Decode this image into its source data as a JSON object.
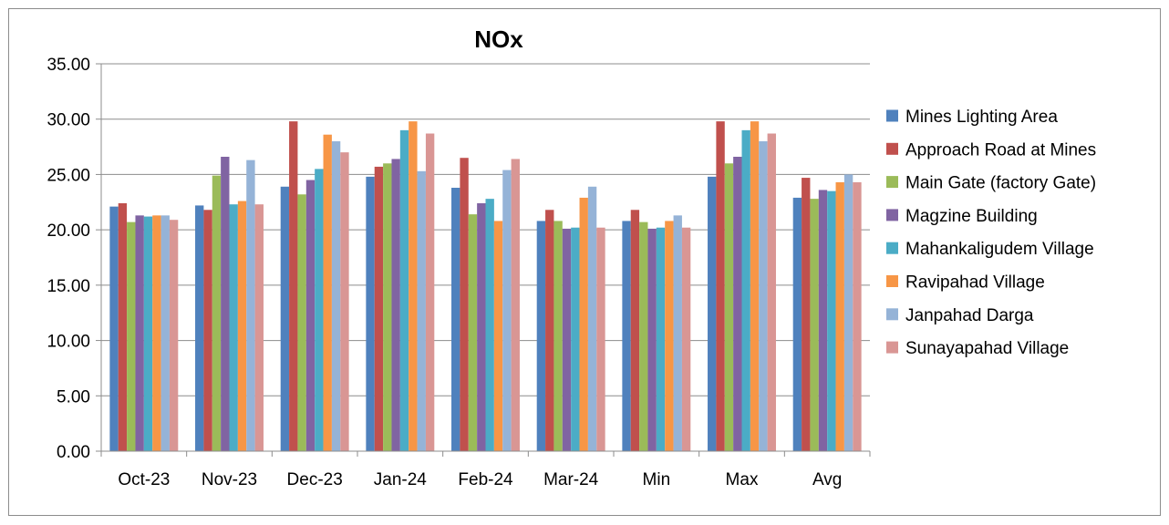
{
  "chart_data": {
    "type": "bar",
    "title": "NOx",
    "xlabel": "",
    "ylabel": "",
    "ylim": [
      0,
      35
    ],
    "yticks": [
      "0.00",
      "5.00",
      "10.00",
      "15.00",
      "20.00",
      "25.00",
      "30.00",
      "35.00"
    ],
    "grid": true,
    "legend_position": "right",
    "categories": [
      "Oct-23",
      "Nov-23",
      "Dec-23",
      "Jan-24",
      "Feb-24",
      "Mar-24",
      "Min",
      "Max",
      "Avg"
    ],
    "series": [
      {
        "name": "Mines Lighting Area",
        "color": "#4F81BD",
        "values": [
          22.1,
          22.2,
          23.9,
          24.8,
          23.8,
          20.8,
          20.8,
          24.8,
          22.9
        ]
      },
      {
        "name": "Approach Road at Mines",
        "color": "#C0504D",
        "values": [
          22.4,
          21.8,
          29.8,
          25.7,
          26.5,
          21.8,
          21.8,
          29.8,
          24.7
        ]
      },
      {
        "name": "Main Gate (factory Gate)",
        "color": "#9BBB59",
        "values": [
          20.7,
          24.9,
          23.2,
          26.0,
          21.4,
          20.8,
          20.7,
          26.0,
          22.8
        ]
      },
      {
        "name": "Magzine Building",
        "color": "#8064A2",
        "values": [
          21.3,
          26.6,
          24.5,
          26.4,
          22.4,
          20.1,
          20.1,
          26.6,
          23.6
        ]
      },
      {
        "name": "Mahankaligudem Village",
        "color": "#4BACC6",
        "values": [
          21.2,
          22.3,
          25.5,
          29.0,
          22.8,
          20.2,
          20.2,
          29.0,
          23.5
        ]
      },
      {
        "name": "Ravipahad Village",
        "color": "#F79646",
        "values": [
          21.3,
          22.6,
          28.6,
          29.8,
          20.8,
          22.9,
          20.8,
          29.8,
          24.3
        ]
      },
      {
        "name": "Janpahad Darga",
        "color": "#95B3D7",
        "values": [
          21.3,
          26.3,
          28.0,
          25.3,
          25.4,
          23.9,
          21.3,
          28.0,
          25.0
        ]
      },
      {
        "name": "Sunayapahad Village",
        "color": "#D99694",
        "values": [
          20.9,
          22.3,
          27.0,
          28.7,
          26.4,
          20.2,
          20.2,
          28.7,
          24.3
        ]
      }
    ]
  }
}
